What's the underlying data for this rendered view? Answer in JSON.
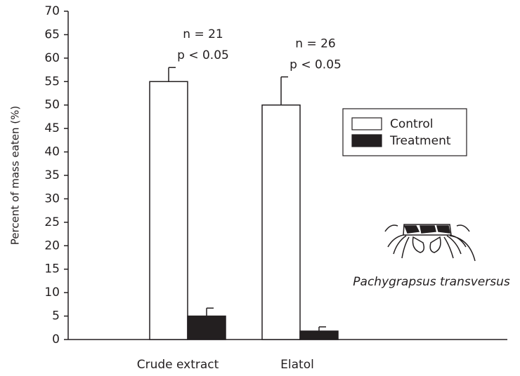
{
  "chart_data": {
    "type": "bar",
    "ylabel": "Percent of mass eaten (%)",
    "categories": [
      "Crude extract",
      "Elatol"
    ],
    "series": [
      {
        "name": "Control",
        "color": "#ffffff",
        "values": [
          55,
          50
        ],
        "errors": [
          3,
          6
        ]
      },
      {
        "name": "Treatment",
        "color": "#231f20",
        "values": [
          5,
          1.8
        ],
        "errors": [
          1.7,
          0.9
        ]
      }
    ],
    "annotations": [
      [
        "n = 21",
        "p < 0.05"
      ],
      [
        "n = 26",
        "p < 0.05"
      ]
    ],
    "species_label": "Pachygrapsus transversus",
    "ylim": [
      0,
      70
    ],
    "yticks": [
      0,
      5,
      10,
      15,
      20,
      25,
      30,
      35,
      40,
      45,
      50,
      55,
      60,
      65,
      70
    ],
    "grid": false,
    "legend_loc": "right"
  }
}
